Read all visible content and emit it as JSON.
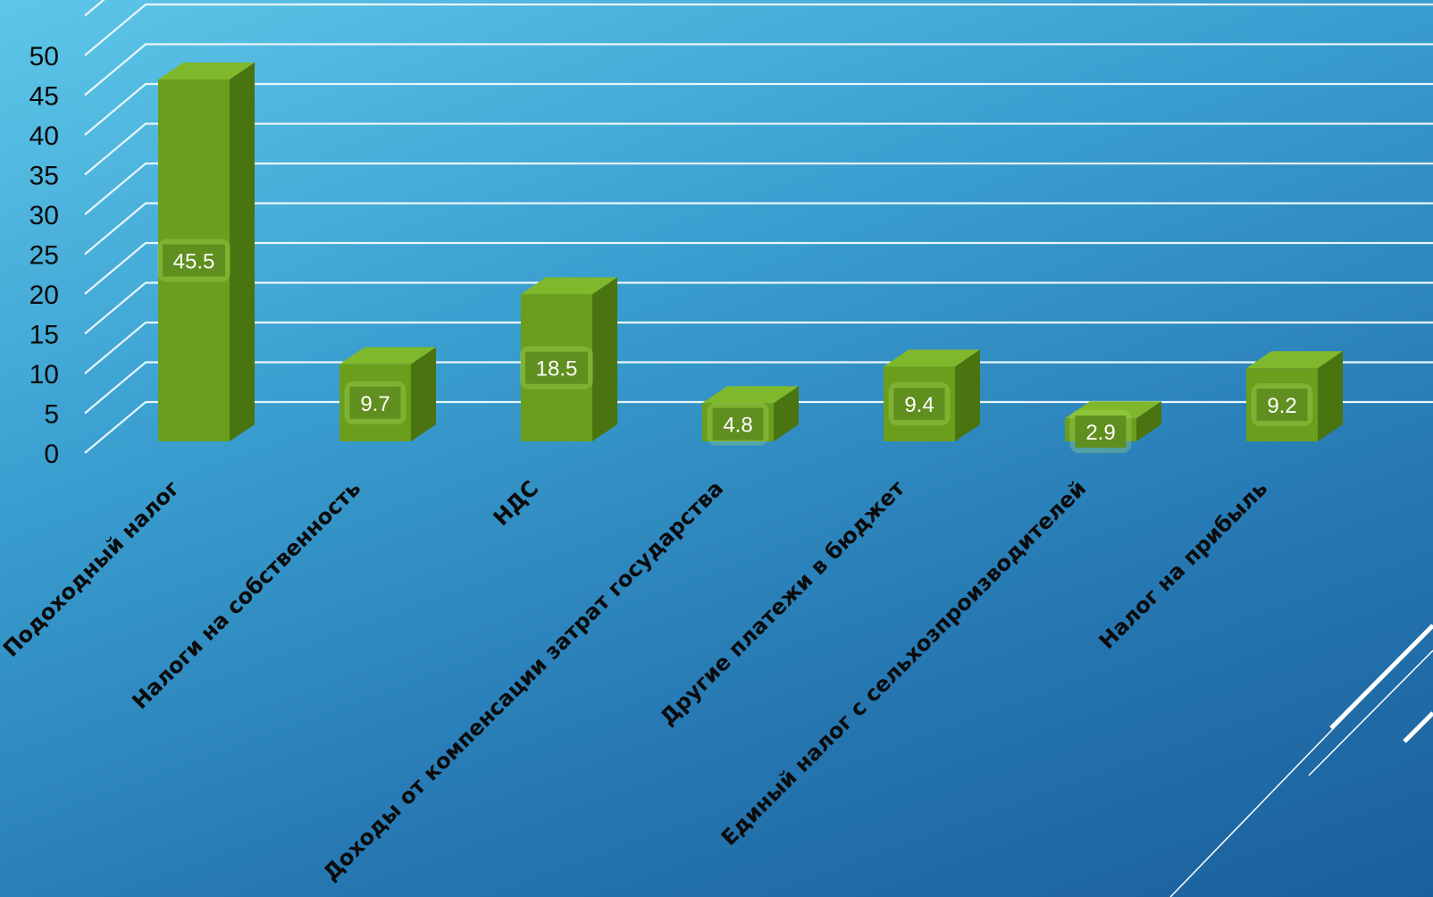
{
  "chart_data": {
    "type": "bar",
    "style": "3d-clustered-column",
    "categories": [
      "Подоходный налог",
      "Налоги на собственность",
      "НДС",
      "Доходы от компенсации затрат государства",
      "Другие платежи в бюджет",
      "Единый налог с сельхозпроизводителей",
      "Налог на прибыль"
    ],
    "values": [
      45.5,
      9.7,
      18.5,
      4.8,
      9.4,
      2.9,
      9.2
    ],
    "data_labels": [
      "45.5",
      "9.7",
      "18.5",
      "4.8",
      "9.4",
      "2.9",
      "9.2"
    ],
    "yticks": [
      "0",
      "5",
      "10",
      "15",
      "20",
      "25",
      "30",
      "35",
      "40",
      "45",
      "50"
    ],
    "ylim": [
      0,
      55
    ],
    "grid": true,
    "legend": "none",
    "title": "",
    "xlabel": "",
    "ylabel": ""
  },
  "colors": {
    "bar_front": "#6a9e1c",
    "bar_top": "#7fb82a",
    "bar_side": "#4a7410",
    "label_box": "#5f8f1e",
    "gridline": "#e8f6fc",
    "accent_line": "#ffffff"
  }
}
